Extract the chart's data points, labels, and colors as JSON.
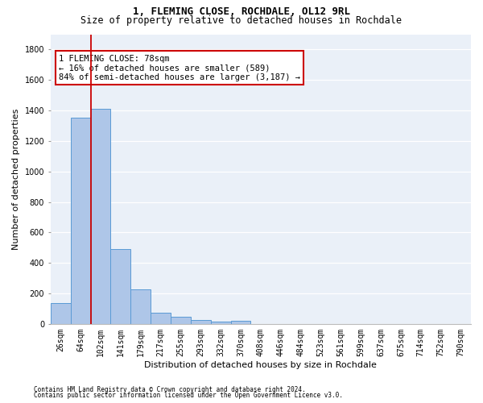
{
  "title": "1, FLEMING CLOSE, ROCHDALE, OL12 9RL",
  "subtitle": "Size of property relative to detached houses in Rochdale",
  "xlabel": "Distribution of detached houses by size in Rochdale",
  "ylabel": "Number of detached properties",
  "bar_values": [
    135,
    1355,
    1410,
    490,
    225,
    75,
    45,
    28,
    15,
    20,
    0,
    0,
    0,
    0,
    0,
    0,
    0,
    0,
    0,
    0,
    0
  ],
  "bar_labels": [
    "26sqm",
    "64sqm",
    "102sqm",
    "141sqm",
    "179sqm",
    "217sqm",
    "255sqm",
    "293sqm",
    "332sqm",
    "370sqm",
    "408sqm",
    "446sqm",
    "484sqm",
    "523sqm",
    "561sqm",
    "599sqm",
    "637sqm",
    "675sqm",
    "714sqm",
    "752sqm",
    "790sqm"
  ],
  "bar_color": "#aec6e8",
  "bar_edge_color": "#5a9bd5",
  "annotation_line1": "1 FLEMING CLOSE: 78sqm",
  "annotation_line2": "← 16% of detached houses are smaller (589)",
  "annotation_line3": "84% of semi-detached houses are larger (3,187) →",
  "annotation_box_color": "#ffffff",
  "annotation_box_edge": "#cc0000",
  "vline_color": "#cc0000",
  "vline_x": 1.5,
  "ylim": [
    0,
    1900
  ],
  "yticks": [
    0,
    200,
    400,
    600,
    800,
    1000,
    1200,
    1400,
    1600,
    1800
  ],
  "footnote1": "Contains HM Land Registry data © Crown copyright and database right 2024.",
  "footnote2": "Contains public sector information licensed under the Open Government Licence v3.0.",
  "bg_color": "#ffffff",
  "plot_bg_color": "#eaf0f8",
  "grid_color": "#ffffff",
  "title_fontsize": 9,
  "subtitle_fontsize": 8.5,
  "xlabel_fontsize": 8,
  "ylabel_fontsize": 8,
  "tick_fontsize": 7,
  "annotation_fontsize": 7.5,
  "footnote_fontsize": 5.5
}
